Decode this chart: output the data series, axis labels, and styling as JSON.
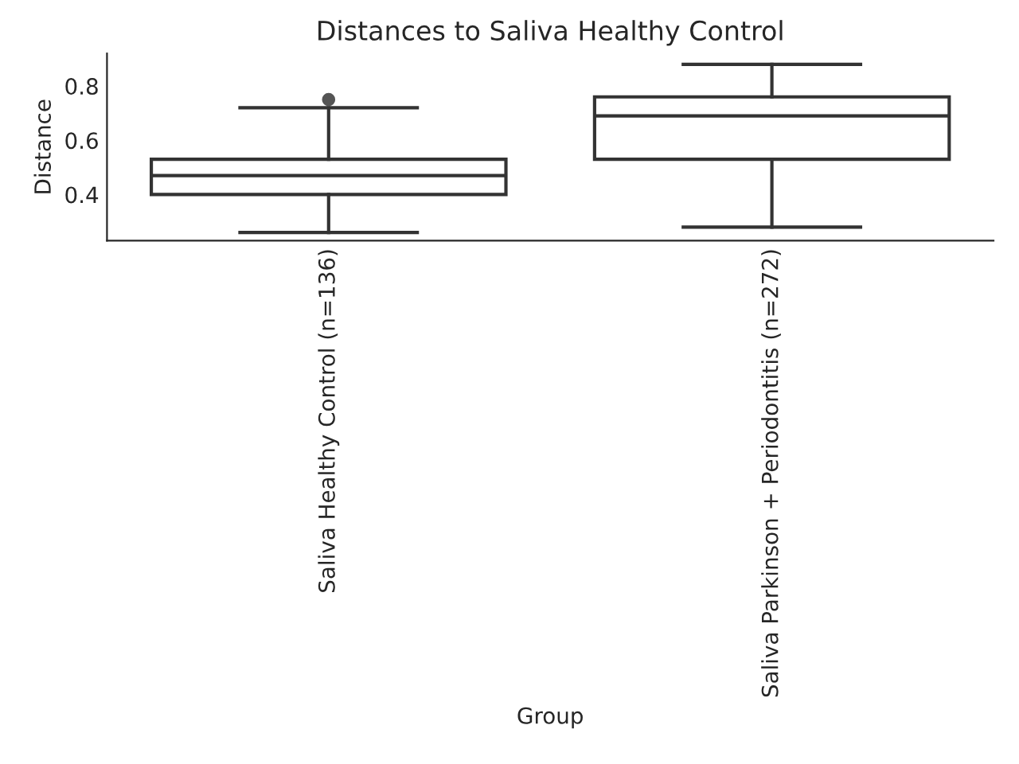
{
  "chart_data": {
    "type": "box",
    "title": "Distances to Saliva Healthy Control",
    "xlabel": "Group",
    "ylabel": "Distance",
    "categories": [
      "Saliva Healthy Control (n=136)",
      "Saliva Parkinson + Periodontitis (n=272)"
    ],
    "boxes": [
      {
        "low": 0.26,
        "q1": 0.4,
        "median": 0.47,
        "q3": 0.53,
        "high": 0.72,
        "outliers": [
          0.75
        ]
      },
      {
        "low": 0.28,
        "q1": 0.53,
        "median": 0.69,
        "q3": 0.76,
        "high": 0.88
      }
    ],
    "color": "#ffffff",
    "ylim": [
      0.23,
      0.92
    ],
    "yticks": [
      0.4,
      0.6,
      0.8
    ],
    "grid": false
  }
}
